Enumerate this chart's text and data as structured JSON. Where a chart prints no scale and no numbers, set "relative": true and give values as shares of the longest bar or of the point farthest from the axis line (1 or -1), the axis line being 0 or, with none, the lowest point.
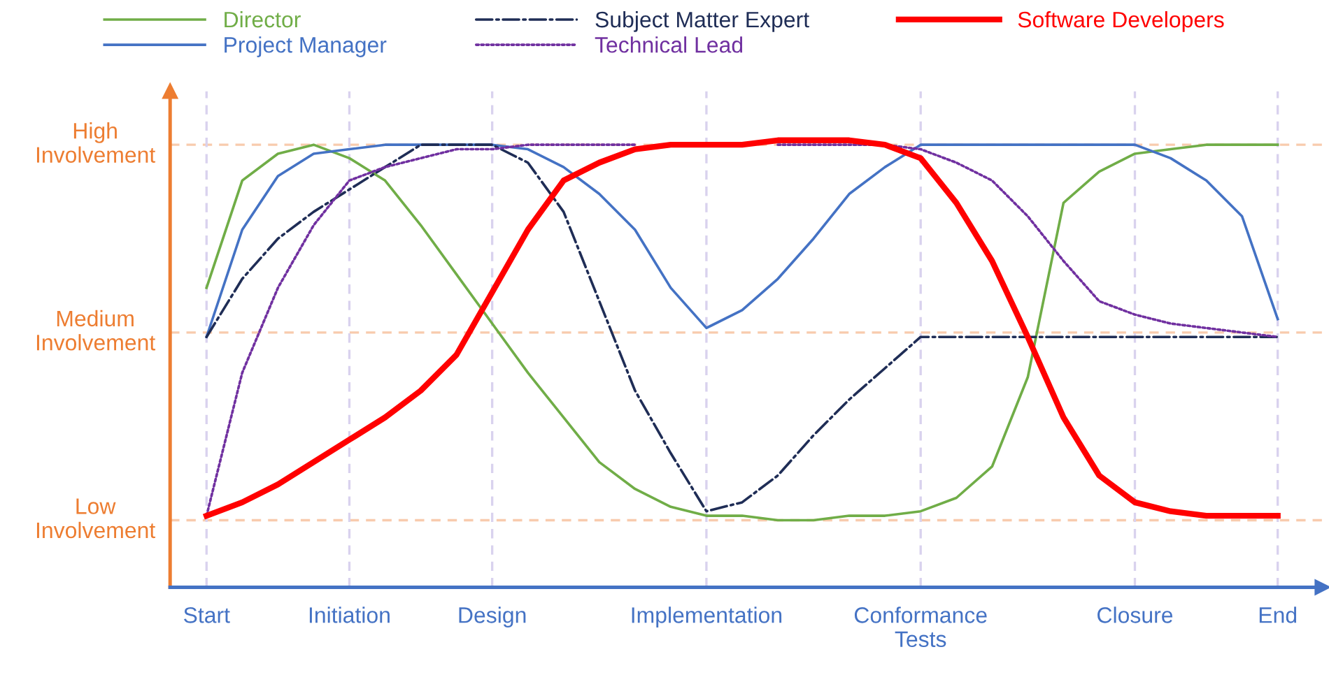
{
  "chart_data": {
    "type": "line",
    "legend": "top",
    "grid": "x",
    "relative": true,
    "categories": [
      "Start",
      null,
      null,
      null,
      "Initiation",
      null,
      null,
      null,
      "Design",
      null,
      null,
      null,
      null,
      null,
      "Implementation",
      null,
      null,
      null,
      null,
      null,
      "Conformance\nTests",
      null,
      null,
      null,
      null,
      null,
      "Closure",
      null,
      null,
      null,
      "End"
    ],
    "ref_lines": [
      {
        "axis": "y",
        "value": 0.15,
        "label": "Low\nInvolvement",
        "color": "#f8cbad",
        "line_style": "dashed"
      },
      {
        "axis": "y",
        "value": 0.57,
        "label": "Medium\nInvolvement",
        "color": "#f8cbad",
        "line_style": "dashed"
      },
      {
        "axis": "y",
        "value": 0.99,
        "label": "High\nInvolvement",
        "color": "#f8cbad",
        "line_style": "dashed"
      }
    ],
    "series": [
      {
        "name": "Director",
        "color": "#70ad47",
        "line_style": "solid",
        "values": [
          0.67,
          0.91,
          0.97,
          0.99,
          0.96,
          0.91,
          0.81,
          0.7,
          0.59,
          0.48,
          0.38,
          0.28,
          0.22,
          0.18,
          0.16,
          0.16,
          0.15,
          0.15,
          0.16,
          0.16,
          0.17,
          0.2,
          0.27,
          0.47,
          0.86,
          0.93,
          0.97,
          0.98,
          0.99,
          0.99,
          0.99
        ]
      },
      {
        "name": "Project Manager",
        "color": "#4472c4",
        "line_style": "solid",
        "values": [
          0.56,
          0.8,
          0.92,
          0.97,
          0.98,
          0.99,
          0.99,
          0.99,
          0.99,
          0.98,
          0.94,
          0.88,
          0.8,
          0.67,
          0.58,
          0.62,
          0.69,
          0.78,
          0.88,
          0.94,
          0.99,
          0.99,
          0.99,
          0.99,
          0.99,
          0.99,
          0.99,
          0.96,
          0.91,
          0.83,
          0.6
        ]
      },
      {
        "name": "Subject Matter Expert",
        "color": "#1f2d56",
        "line_style": "dashdot",
        "values": [
          0.56,
          0.69,
          0.78,
          0.84,
          0.89,
          0.94,
          0.99,
          0.99,
          0.99,
          0.95,
          0.84,
          0.64,
          0.44,
          0.3,
          0.17,
          0.19,
          0.25,
          0.34,
          0.42,
          0.49,
          0.56,
          0.56,
          0.56,
          0.56,
          0.56,
          0.56,
          0.56,
          0.56,
          0.56,
          0.56,
          0.56
        ]
      },
      {
        "name": "Technical Lead",
        "color": "#7030a0",
        "line_style": "dotted",
        "values": [
          0.16,
          0.48,
          0.67,
          0.81,
          0.91,
          0.94,
          0.96,
          0.98,
          0.98,
          0.99,
          0.99,
          0.99,
          0.99,
          null,
          null,
          null,
          0.99,
          0.99,
          0.99,
          0.99,
          0.98,
          0.95,
          0.91,
          0.83,
          0.73,
          0.64,
          0.61,
          0.59,
          0.58,
          0.57,
          0.56
        ]
      },
      {
        "name": "Software Developers",
        "color": "#ff0000",
        "line_style": "solid",
        "values": [
          0.16,
          0.19,
          0.23,
          0.28,
          0.33,
          0.38,
          0.44,
          0.52,
          0.66,
          0.8,
          0.91,
          0.95,
          0.98,
          0.99,
          0.99,
          0.99,
          1,
          1,
          1,
          0.99,
          0.96,
          0.86,
          0.73,
          0.56,
          0.38,
          0.25,
          0.19,
          0.17,
          0.16,
          0.16,
          0.16
        ]
      }
    ]
  }
}
